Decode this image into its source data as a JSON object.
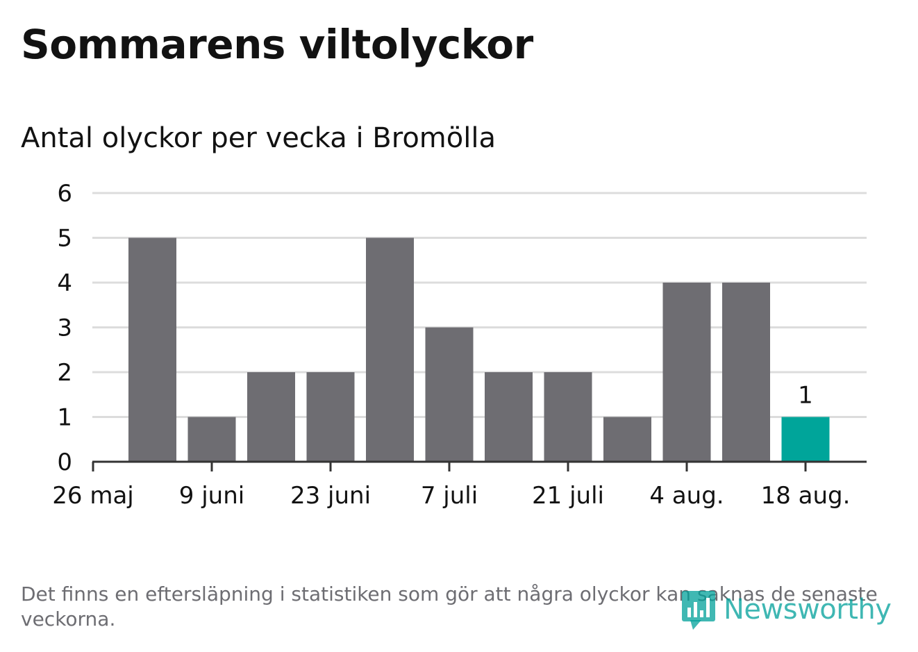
{
  "title": "Sommarens viltolyckor",
  "subtitle": "Antal olyckor per vecka i Bromölla",
  "note": "Det finns en eftersläpning i statistiken som gör att några olyckor kan saknas de senaste veckorna.",
  "logo_text": "Newsworthy",
  "colors": {
    "bar": "#6e6d72",
    "highlight": "#00a59a",
    "grid": "#dcdcdc",
    "axis": "#333333"
  },
  "chart_data": {
    "type": "bar",
    "x_tick_labels": [
      "26 maj",
      "9 juni",
      "23 juni",
      "7 juli",
      "21 juli",
      "4 aug.",
      "18 aug."
    ],
    "bars": [
      {
        "week_start": "2 juni",
        "value": 5
      },
      {
        "week_start": "9 juni",
        "value": 1
      },
      {
        "week_start": "16 juni",
        "value": 2
      },
      {
        "week_start": "23 juni",
        "value": 2
      },
      {
        "week_start": "30 juni",
        "value": 5
      },
      {
        "week_start": "7 juli",
        "value": 3
      },
      {
        "week_start": "14 juli",
        "value": 2
      },
      {
        "week_start": "21 juli",
        "value": 2
      },
      {
        "week_start": "28 juli",
        "value": 1
      },
      {
        "week_start": "4 aug.",
        "value": 4
      },
      {
        "week_start": "11 aug.",
        "value": 4
      },
      {
        "week_start": "18 aug.",
        "value": 1,
        "highlight": true,
        "label": "1"
      }
    ],
    "y_ticks": [
      0,
      1,
      2,
      3,
      4,
      5,
      6
    ],
    "ylim": [
      0,
      6
    ],
    "grid": true,
    "legend": "none"
  }
}
